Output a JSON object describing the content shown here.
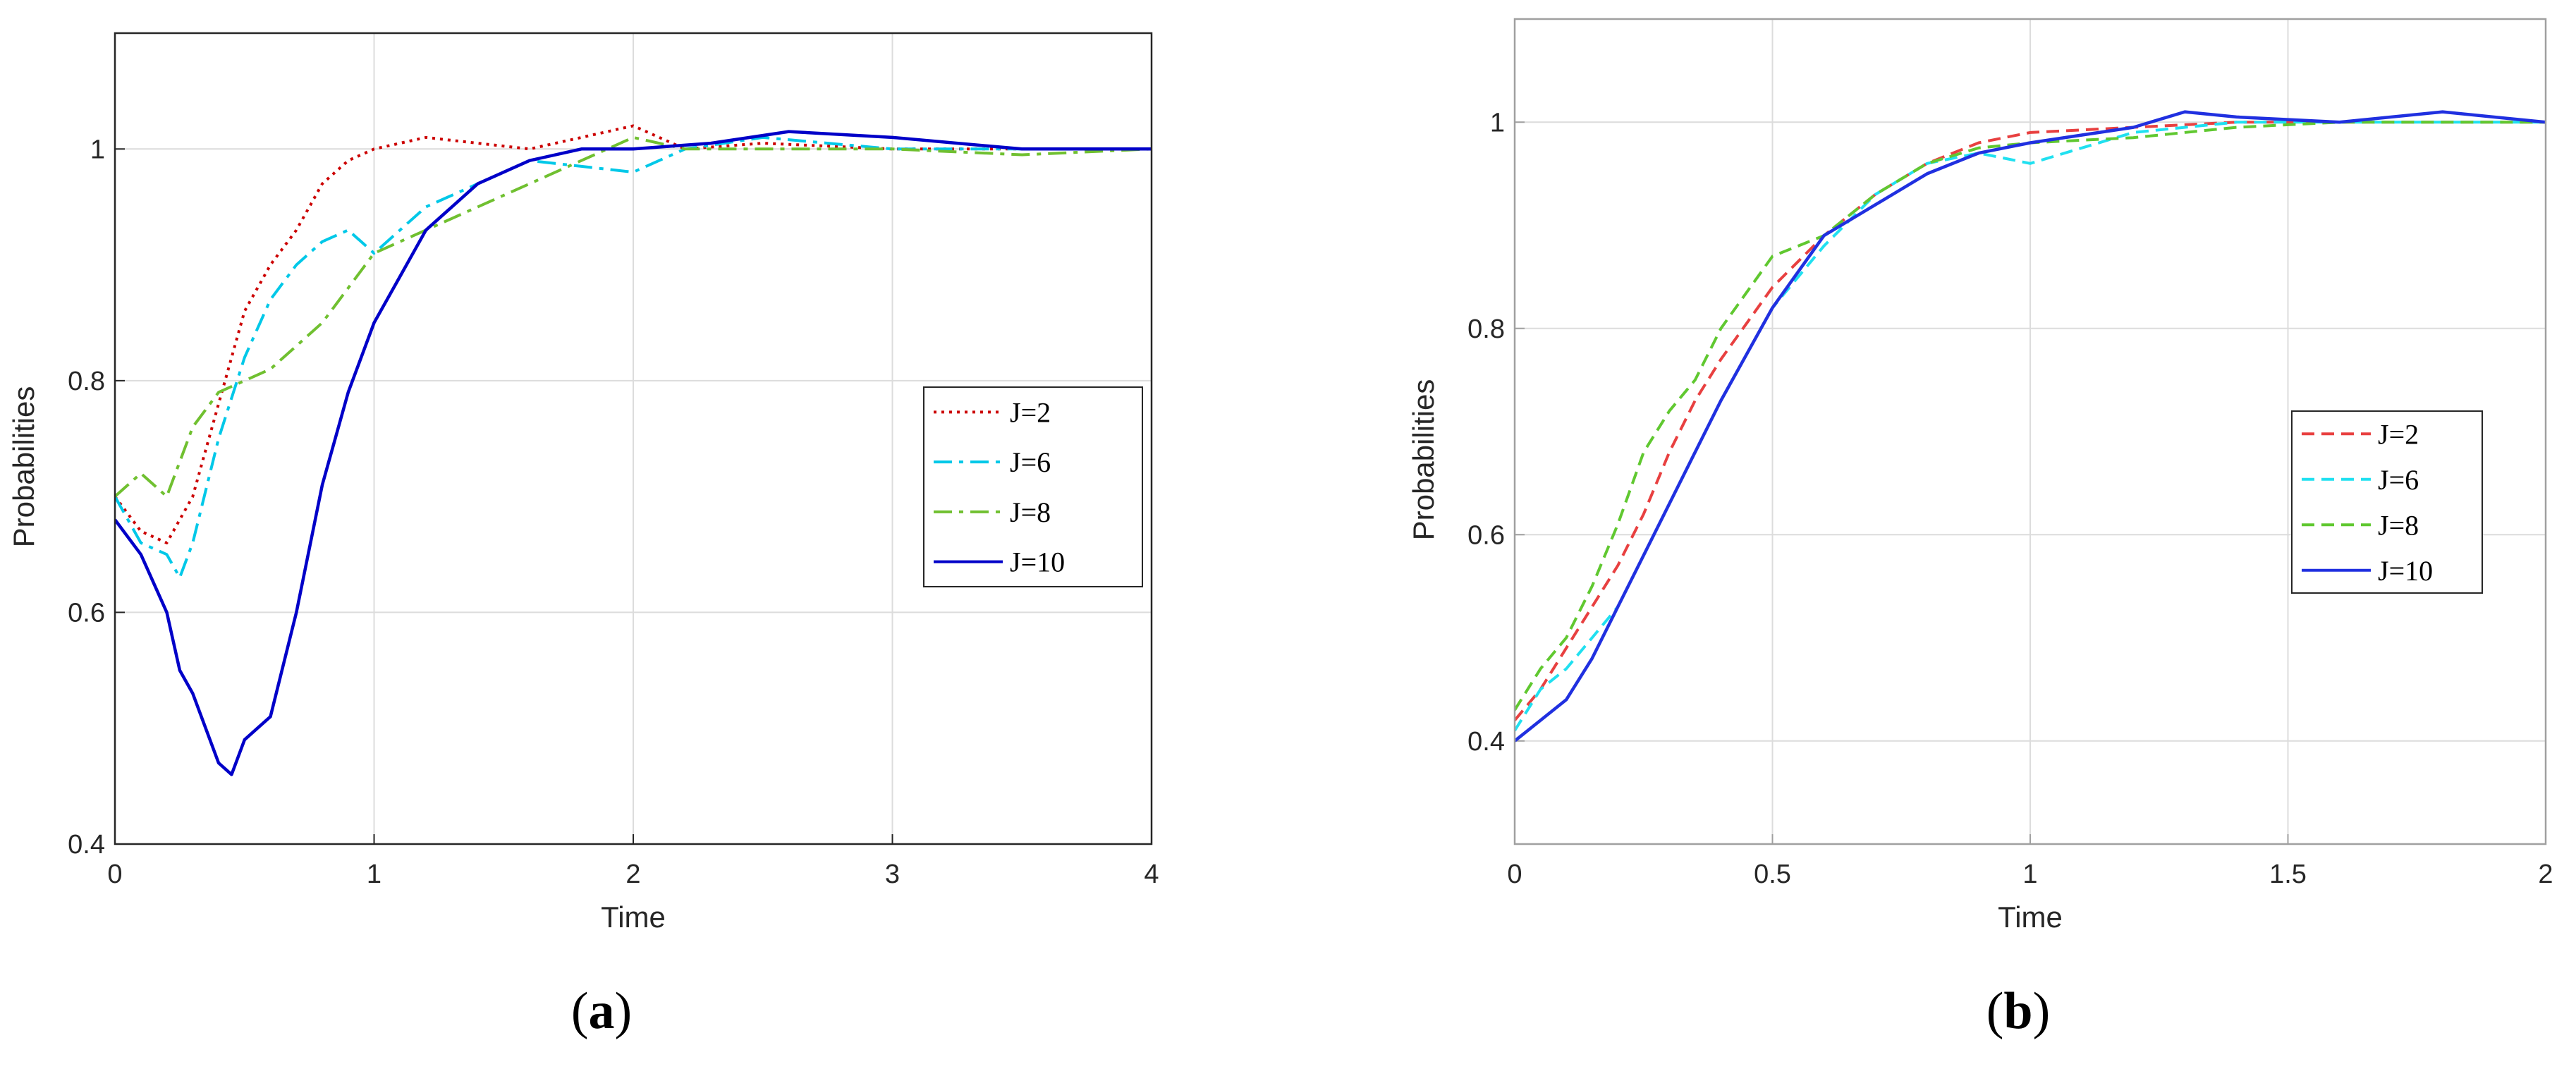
{
  "chart_data": [
    {
      "type": "line",
      "panel_label": "(a)",
      "xlabel": "Time",
      "ylabel": "Probabilities",
      "xlim": [
        0,
        4
      ],
      "ylim": [
        0.4,
        1.1
      ],
      "xticks": [
        "0",
        "1",
        "2",
        "3",
        "4"
      ],
      "yticks": [
        "0.4",
        "0.6",
        "0.8",
        "1"
      ],
      "grid": true,
      "legend_position": "right-middle",
      "series": [
        {
          "name": "J=2",
          "color": "#cc0000",
          "dash": "dotted",
          "points": [
            [
              0,
              0.7
            ],
            [
              0.1,
              0.67
            ],
            [
              0.2,
              0.66
            ],
            [
              0.3,
              0.7
            ],
            [
              0.4,
              0.78
            ],
            [
              0.5,
              0.86
            ],
            [
              0.6,
              0.9
            ],
            [
              0.7,
              0.93
            ],
            [
              0.8,
              0.97
            ],
            [
              0.9,
              0.99
            ],
            [
              1.0,
              1.0
            ],
            [
              1.2,
              1.01
            ],
            [
              1.4,
              1.005
            ],
            [
              1.6,
              1.0
            ],
            [
              1.8,
              1.01
            ],
            [
              2.0,
              1.02
            ],
            [
              2.2,
              1.0
            ],
            [
              2.5,
              1.005
            ],
            [
              3.0,
              1.0
            ],
            [
              3.5,
              1.0
            ],
            [
              4.0,
              1.0
            ]
          ]
        },
        {
          "name": "J=6",
          "color": "#00c8e8",
          "dash": "dashdot",
          "points": [
            [
              0,
              0.7
            ],
            [
              0.1,
              0.66
            ],
            [
              0.2,
              0.65
            ],
            [
              0.25,
              0.63
            ],
            [
              0.3,
              0.66
            ],
            [
              0.4,
              0.75
            ],
            [
              0.5,
              0.82
            ],
            [
              0.6,
              0.87
            ],
            [
              0.7,
              0.9
            ],
            [
              0.8,
              0.92
            ],
            [
              0.9,
              0.93
            ],
            [
              1.0,
              0.91
            ],
            [
              1.2,
              0.95
            ],
            [
              1.4,
              0.97
            ],
            [
              1.6,
              0.99
            ],
            [
              1.8,
              0.985
            ],
            [
              2.0,
              0.98
            ],
            [
              2.2,
              1.0
            ],
            [
              2.5,
              1.01
            ],
            [
              3.0,
              1.0
            ],
            [
              3.5,
              1.0
            ],
            [
              4.0,
              1.0
            ]
          ]
        },
        {
          "name": "J=8",
          "color": "#70c030",
          "dash": "dashdot",
          "points": [
            [
              0,
              0.7
            ],
            [
              0.1,
              0.72
            ],
            [
              0.2,
              0.7
            ],
            [
              0.3,
              0.76
            ],
            [
              0.4,
              0.79
            ],
            [
              0.5,
              0.8
            ],
            [
              0.6,
              0.81
            ],
            [
              0.7,
              0.83
            ],
            [
              0.8,
              0.85
            ],
            [
              0.9,
              0.88
            ],
            [
              1.0,
              0.91
            ],
            [
              1.2,
              0.93
            ],
            [
              1.4,
              0.95
            ],
            [
              1.6,
              0.97
            ],
            [
              1.8,
              0.99
            ],
            [
              2.0,
              1.01
            ],
            [
              2.2,
              1.0
            ],
            [
              2.5,
              1.0
            ],
            [
              3.0,
              1.0
            ],
            [
              3.5,
              0.995
            ],
            [
              4.0,
              1.0
            ]
          ]
        },
        {
          "name": "J=10",
          "color": "#0000c8",
          "dash": "solid",
          "points": [
            [
              0,
              0.68
            ],
            [
              0.1,
              0.65
            ],
            [
              0.2,
              0.6
            ],
            [
              0.25,
              0.55
            ],
            [
              0.3,
              0.53
            ],
            [
              0.4,
              0.47
            ],
            [
              0.45,
              0.46
            ],
            [
              0.5,
              0.49
            ],
            [
              0.55,
              0.5
            ],
            [
              0.6,
              0.51
            ],
            [
              0.7,
              0.6
            ],
            [
              0.8,
              0.71
            ],
            [
              0.9,
              0.79
            ],
            [
              1.0,
              0.85
            ],
            [
              1.1,
              0.89
            ],
            [
              1.2,
              0.93
            ],
            [
              1.4,
              0.97
            ],
            [
              1.6,
              0.99
            ],
            [
              1.8,
              1.0
            ],
            [
              2.0,
              1.0
            ],
            [
              2.3,
              1.005
            ],
            [
              2.6,
              1.015
            ],
            [
              3.0,
              1.01
            ],
            [
              3.5,
              1.0
            ],
            [
              4.0,
              1.0
            ]
          ]
        }
      ]
    },
    {
      "type": "line",
      "panel_label": "(b)",
      "xlabel": "Time",
      "ylabel": "Probabilities",
      "xlim": [
        0,
        2
      ],
      "ylim": [
        0.3,
        1.1
      ],
      "xticks": [
        "0",
        "0.5",
        "1",
        "1.5",
        "2"
      ],
      "yticks": [
        "0.4",
        "0.6",
        "0.8",
        "1"
      ],
      "grid": true,
      "legend_position": "right-middle",
      "series": [
        {
          "name": "J=2",
          "color": "#e84040",
          "dash": "dashed",
          "points": [
            [
              0,
              0.42
            ],
            [
              0.05,
              0.45
            ],
            [
              0.1,
              0.49
            ],
            [
              0.15,
              0.53
            ],
            [
              0.2,
              0.57
            ],
            [
              0.25,
              0.62
            ],
            [
              0.3,
              0.68
            ],
            [
              0.35,
              0.73
            ],
            [
              0.4,
              0.77
            ],
            [
              0.5,
              0.84
            ],
            [
              0.6,
              0.89
            ],
            [
              0.7,
              0.93
            ],
            [
              0.8,
              0.96
            ],
            [
              0.9,
              0.98
            ],
            [
              1.0,
              0.99
            ],
            [
              1.2,
              0.995
            ],
            [
              1.4,
              1.0
            ],
            [
              1.6,
              1.0
            ],
            [
              1.8,
              1.0
            ],
            [
              2.0,
              1.0
            ]
          ]
        },
        {
          "name": "J=6",
          "color": "#20e0f0",
          "dash": "dashed",
          "points": [
            [
              0,
              0.41
            ],
            [
              0.05,
              0.45
            ],
            [
              0.1,
              0.47
            ],
            [
              0.15,
              0.5
            ],
            [
              0.2,
              0.53
            ],
            [
              0.25,
              0.58
            ],
            [
              0.3,
              0.63
            ],
            [
              0.35,
              0.68
            ],
            [
              0.4,
              0.73
            ],
            [
              0.5,
              0.82
            ],
            [
              0.6,
              0.88
            ],
            [
              0.7,
              0.93
            ],
            [
              0.8,
              0.96
            ],
            [
              0.9,
              0.97
            ],
            [
              1.0,
              0.96
            ],
            [
              1.2,
              0.99
            ],
            [
              1.4,
              1.0
            ],
            [
              1.6,
              1.0
            ],
            [
              1.8,
              1.0
            ],
            [
              2.0,
              1.0
            ]
          ]
        },
        {
          "name": "J=8",
          "color": "#60c830",
          "dash": "dashed",
          "points": [
            [
              0,
              0.43
            ],
            [
              0.05,
              0.47
            ],
            [
              0.1,
              0.5
            ],
            [
              0.15,
              0.55
            ],
            [
              0.2,
              0.61
            ],
            [
              0.25,
              0.68
            ],
            [
              0.3,
              0.72
            ],
            [
              0.35,
              0.75
            ],
            [
              0.4,
              0.8
            ],
            [
              0.5,
              0.87
            ],
            [
              0.6,
              0.89
            ],
            [
              0.7,
              0.93
            ],
            [
              0.8,
              0.96
            ],
            [
              0.9,
              0.975
            ],
            [
              1.0,
              0.98
            ],
            [
              1.2,
              0.985
            ],
            [
              1.4,
              0.995
            ],
            [
              1.6,
              1.0
            ],
            [
              1.8,
              1.0
            ],
            [
              2.0,
              1.0
            ]
          ]
        },
        {
          "name": "J=10",
          "color": "#2030e0",
          "dash": "solid",
          "points": [
            [
              0,
              0.4
            ],
            [
              0.05,
              0.42
            ],
            [
              0.1,
              0.44
            ],
            [
              0.15,
              0.48
            ],
            [
              0.2,
              0.53
            ],
            [
              0.25,
              0.58
            ],
            [
              0.3,
              0.63
            ],
            [
              0.35,
              0.68
            ],
            [
              0.4,
              0.73
            ],
            [
              0.5,
              0.82
            ],
            [
              0.6,
              0.89
            ],
            [
              0.7,
              0.92
            ],
            [
              0.8,
              0.95
            ],
            [
              0.9,
              0.97
            ],
            [
              1.0,
              0.98
            ],
            [
              1.2,
              0.995
            ],
            [
              1.3,
              1.01
            ],
            [
              1.4,
              1.005
            ],
            [
              1.6,
              1.0
            ],
            [
              1.8,
              1.01
            ],
            [
              2.0,
              1.0
            ]
          ]
        }
      ]
    }
  ]
}
